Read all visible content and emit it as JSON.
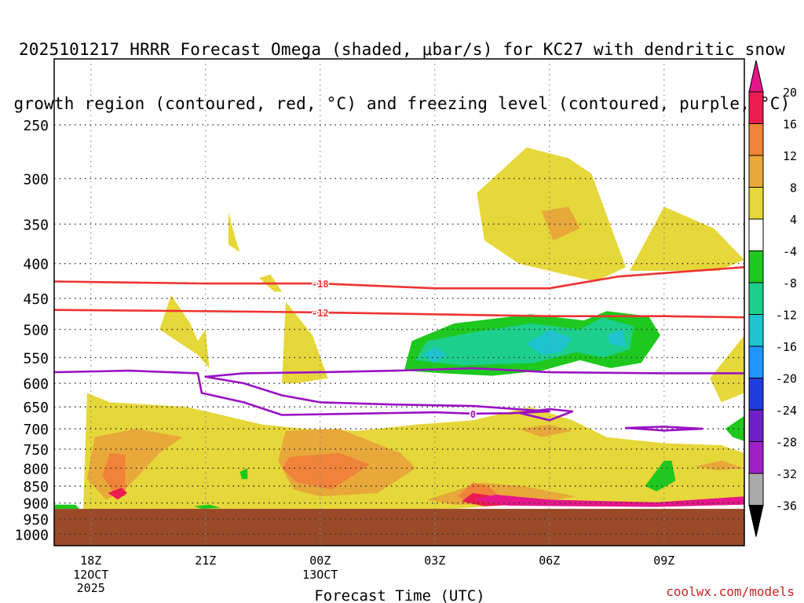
{
  "chart_data": {
    "type": "heatmap",
    "title_lines": [
      "2025101217 HRRR Forecast Omega (shaded, μbar/s) for KC27 with dendritic snow",
      "growth region (contoured, red, °C) and freezing level (contoured, purple, °C)"
    ],
    "xlabel": "Forecast Time (UTC)",
    "ylabel": "",
    "x_ticks": [
      {
        "label": "18Z",
        "sub": [
          "12OCT",
          "2025"
        ],
        "hours": 0
      },
      {
        "label": "21Z",
        "sub": [],
        "hours": 3
      },
      {
        "label": "00Z",
        "sub": [
          "13OCT"
        ],
        "hours": 6
      },
      {
        "label": "03Z",
        "sub": [],
        "hours": 9
      },
      {
        "label": "06Z",
        "sub": [],
        "hours": 12
      },
      {
        "label": "09Z",
        "sub": [],
        "hours": 15
      }
    ],
    "xlim_hours": [
      -0.96,
      17.1
    ],
    "y_ticks": [
      250,
      300,
      350,
      400,
      450,
      500,
      550,
      600,
      650,
      700,
      750,
      800,
      850,
      900,
      950,
      1000
    ],
    "y_scale": "log-pressure",
    "ylim": [
      200,
      1040
    ],
    "ground_pressure": 918,
    "grid": true,
    "colorbar": {
      "label_values": [
        20,
        16,
        12,
        8,
        4,
        -4,
        -8,
        -12,
        -16,
        -20,
        -24,
        -28,
        -32,
        -36
      ],
      "colors_top_to_bottom": [
        "#ec1c50",
        "#f0823a",
        "#e8a83a",
        "#e6d73a",
        "#ffffff",
        "#1ec81e",
        "#1dcf8c",
        "#1fc3cf",
        "#1e96ff",
        "#1e3cdc",
        "#7020c8",
        "#a020c8",
        "#aaaaaa"
      ],
      "arrow_top": "#e6168a",
      "arrow_bottom": "#000000"
    },
    "contours": [
      {
        "name": "-18",
        "color": "#ee3333",
        "label": "-18",
        "points": [
          [
            -0.96,
            425
          ],
          [
            3,
            428
          ],
          [
            6,
            428
          ],
          [
            9,
            435
          ],
          [
            12,
            435
          ],
          [
            13.8,
            418
          ],
          [
            17.1,
            405
          ]
        ]
      },
      {
        "name": "-12",
        "color": "#ee3333",
        "label": "-12",
        "points": [
          [
            -0.96,
            468
          ],
          [
            3,
            470
          ],
          [
            6,
            472
          ],
          [
            9,
            475
          ],
          [
            12,
            478
          ],
          [
            15,
            478
          ],
          [
            17.1,
            480
          ]
        ]
      },
      {
        "name": "0",
        "color": "#9b11c4",
        "label": "0",
        "points": [
          [
            -0.96,
            578
          ],
          [
            1,
            575
          ],
          [
            2.8,
            580
          ],
          [
            2.9,
            620
          ],
          [
            4,
            640
          ],
          [
            5,
            668
          ],
          [
            7,
            665
          ],
          [
            9,
            662
          ],
          [
            10,
            665
          ],
          [
            11,
            664
          ],
          [
            12,
            660
          ],
          [
            10,
            648
          ],
          [
            8,
            645
          ],
          [
            6,
            640
          ],
          [
            5,
            625
          ],
          [
            4,
            600
          ],
          [
            3,
            587
          ],
          [
            4,
            580
          ],
          [
            6,
            578
          ],
          [
            8,
            575
          ],
          [
            10,
            570
          ],
          [
            12,
            578
          ],
          [
            15,
            580
          ],
          [
            17.1,
            580
          ]
        ]
      },
      {
        "name": "0-small-1",
        "color": "#9b11c4",
        "label": "",
        "points": [
          [
            11.2,
            663
          ],
          [
            12,
            655
          ],
          [
            12.6,
            660
          ],
          [
            12,
            680
          ],
          [
            11.2,
            663
          ]
        ]
      },
      {
        "name": "0-small-2",
        "color": "#9b11c4",
        "label": "",
        "points": [
          [
            15,
            695
          ],
          [
            16,
            700
          ],
          [
            15,
            704
          ],
          [
            14,
            698
          ],
          [
            15,
            695
          ]
        ]
      }
    ],
    "shaded_regions": [
      {
        "name": "omega-pos-4-8-a",
        "color": "#e6d73a",
        "points": [
          [
            -0.2,
            920
          ],
          [
            -0.1,
            620
          ],
          [
            0.5,
            640
          ],
          [
            1.5,
            645
          ],
          [
            2.5,
            650
          ],
          [
            4.5,
            690
          ],
          [
            5.6,
            700
          ],
          [
            7,
            705
          ],
          [
            8.5,
            690
          ],
          [
            10,
            680
          ],
          [
            11.5,
            650
          ],
          [
            12.6,
            680
          ],
          [
            13.5,
            720
          ],
          [
            15,
            735
          ],
          [
            16.5,
            740
          ],
          [
            17.1,
            760
          ],
          [
            17.1,
            900
          ],
          [
            14.8,
            908
          ],
          [
            12.8,
            902
          ],
          [
            11.2,
            903
          ],
          [
            9.5,
            918
          ]
        ]
      },
      {
        "name": "omega-pos-upper-1",
        "color": "#e6d73a",
        "points": [
          [
            10.1,
            315
          ],
          [
            11.4,
            270
          ],
          [
            12.5,
            280
          ],
          [
            13.1,
            295
          ],
          [
            14,
            405
          ],
          [
            13.2,
            425
          ],
          [
            12,
            410
          ],
          [
            11.2,
            400
          ],
          [
            10.3,
            370
          ]
        ]
      },
      {
        "name": "omega-pos-upper-2",
        "color": "#e6d73a",
        "points": [
          [
            14.1,
            410
          ],
          [
            15,
            330
          ],
          [
            16.3,
            355
          ],
          [
            17.1,
            395
          ],
          [
            16.4,
            410
          ],
          [
            15.2,
            410
          ]
        ]
      },
      {
        "name": "omega-pos-upper-3",
        "color": "#e6d73a",
        "points": [
          [
            3.6,
            336
          ],
          [
            3.8,
            370
          ],
          [
            3.9,
            385
          ],
          [
            3.6,
            375
          ]
        ]
      },
      {
        "name": "omega-pos-mid-1",
        "color": "#e6d73a",
        "points": [
          [
            1.8,
            500
          ],
          [
            2.1,
            445
          ],
          [
            2.6,
            490
          ],
          [
            2.8,
            520
          ],
          [
            3,
            500
          ],
          [
            3.1,
            570
          ],
          [
            2.8,
            545
          ]
        ]
      },
      {
        "name": "omega-pos-mid-2",
        "color": "#e6d73a",
        "points": [
          [
            5,
            600
          ],
          [
            5.1,
            455
          ],
          [
            5.8,
            510
          ],
          [
            6.2,
            590
          ],
          [
            5.4,
            600
          ]
        ]
      },
      {
        "name": "omega-pos-mid-3",
        "color": "#e6d73a",
        "points": [
          [
            4.4,
            420
          ],
          [
            4.7,
            415
          ],
          [
            5.0,
            440
          ],
          [
            4.8,
            440
          ]
        ]
      },
      {
        "name": "omega-pos-right",
        "color": "#e6d73a",
        "points": [
          [
            16.2,
            590
          ],
          [
            17.1,
            510
          ],
          [
            17.1,
            620
          ],
          [
            16.5,
            640
          ]
        ]
      },
      {
        "name": "omega-pos-8-12-a",
        "color": "#e8a83a",
        "points": [
          [
            -0.1,
            830
          ],
          [
            0.1,
            720
          ],
          [
            1.2,
            700
          ],
          [
            2.4,
            720
          ],
          [
            1.8,
            760
          ],
          [
            0.9,
            860
          ],
          [
            0.4,
            890
          ]
        ]
      },
      {
        "name": "omega-pos-8-12-b",
        "color": "#e8a83a",
        "points": [
          [
            4.9,
            780
          ],
          [
            5.1,
            705
          ],
          [
            6.5,
            700
          ],
          [
            8.1,
            760
          ],
          [
            8.5,
            800
          ],
          [
            7.5,
            870
          ],
          [
            6.0,
            880
          ],
          [
            5.3,
            860
          ]
        ]
      },
      {
        "name": "omega-pos-8-12-c",
        "color": "#e8a83a",
        "points": [
          [
            8.8,
            890
          ],
          [
            10.2,
            840
          ],
          [
            11.3,
            850
          ],
          [
            12.7,
            880
          ],
          [
            11.6,
            900
          ],
          [
            9.5,
            905
          ]
        ]
      },
      {
        "name": "omega-pos-8-12-d",
        "color": "#e8a83a",
        "points": [
          [
            11.2,
            700
          ],
          [
            12,
            690
          ],
          [
            12.6,
            705
          ],
          [
            11.8,
            720
          ]
        ]
      },
      {
        "name": "omega-pos-8-12-e",
        "color": "#e8a83a",
        "points": [
          [
            15.8,
            795
          ],
          [
            16.5,
            780
          ],
          [
            17.1,
            800
          ],
          [
            16.4,
            805
          ]
        ]
      },
      {
        "name": "omega-pos-8-12-upper",
        "color": "#e8a83a",
        "points": [
          [
            11.8,
            335
          ],
          [
            12.5,
            330
          ],
          [
            12.8,
            355
          ],
          [
            12.1,
            370
          ]
        ]
      },
      {
        "name": "omega-pos-12-16-a",
        "color": "#f0823a",
        "points": [
          [
            0.3,
            820
          ],
          [
            0.5,
            760
          ],
          [
            0.9,
            765
          ],
          [
            0.9,
            880
          ],
          [
            0.6,
            870
          ]
        ]
      },
      {
        "name": "omega-pos-12-16-b",
        "color": "#f0823a",
        "points": [
          [
            5.0,
            800
          ],
          [
            5.2,
            770
          ],
          [
            6.5,
            760
          ],
          [
            7.3,
            790
          ],
          [
            6.3,
            860
          ],
          [
            5.4,
            840
          ]
        ]
      },
      {
        "name": "omega-pos-12-16-c",
        "color": "#f0823a",
        "points": [
          [
            9.6,
            880
          ],
          [
            10.0,
            840
          ],
          [
            10.4,
            850
          ],
          [
            10.9,
            900
          ],
          [
            10.0,
            905
          ]
        ]
      },
      {
        "name": "omega-pos-16-20-a",
        "color": "#ec1c50",
        "points": [
          [
            0.45,
            870
          ],
          [
            0.8,
            855
          ],
          [
            0.95,
            870
          ],
          [
            0.7,
            890
          ]
        ]
      },
      {
        "name": "omega-pos-16-20-b",
        "color": "#ec1c50",
        "points": [
          [
            9.7,
            895
          ],
          [
            10.0,
            870
          ],
          [
            10.6,
            880
          ],
          [
            11.3,
            905
          ],
          [
            10.3,
            910
          ]
        ]
      },
      {
        "name": "omega-pos-20-plus",
        "color": "#e6168a",
        "points": [
          [
            10.0,
            890
          ],
          [
            10.6,
            875
          ],
          [
            12.0,
            890
          ],
          [
            14.8,
            898
          ],
          [
            17.1,
            880
          ],
          [
            17.1,
            905
          ],
          [
            14.8,
            912
          ],
          [
            12.6,
            910
          ],
          [
            10.9,
            908
          ]
        ]
      },
      {
        "name": "omega-neg-4-8-big",
        "color": "#1ec81e",
        "points": [
          [
            8.2,
            575
          ],
          [
            8.4,
            520
          ],
          [
            9.5,
            490
          ],
          [
            11.5,
            475
          ],
          [
            12.9,
            485
          ],
          [
            13.5,
            470
          ],
          [
            14.6,
            478
          ],
          [
            14.9,
            510
          ],
          [
            14.4,
            560
          ],
          [
            13.6,
            570
          ],
          [
            12.8,
            555
          ],
          [
            11.8,
            575
          ],
          [
            10.5,
            585
          ],
          [
            9.2,
            580
          ]
        ]
      },
      {
        "name": "omega-neg-8-12",
        "color": "#1dcf8c",
        "points": [
          [
            8.5,
            555
          ],
          [
            8.8,
            520
          ],
          [
            10,
            505
          ],
          [
            11.5,
            490
          ],
          [
            12.8,
            500
          ],
          [
            13.4,
            480
          ],
          [
            14.2,
            495
          ],
          [
            14.1,
            535
          ],
          [
            13.4,
            550
          ],
          [
            12.7,
            540
          ],
          [
            11.6,
            560
          ],
          [
            9.7,
            565
          ]
        ]
      },
      {
        "name": "omega-neg-12-16-a",
        "color": "#1fc3cf",
        "points": [
          [
            8.7,
            545
          ],
          [
            9.0,
            530
          ],
          [
            9.3,
            545
          ],
          [
            9.0,
            560
          ]
        ]
      },
      {
        "name": "omega-neg-12-16-b",
        "color": "#1fc3cf",
        "points": [
          [
            11.4,
            525
          ],
          [
            12,
            500
          ],
          [
            12.6,
            515
          ],
          [
            12.3,
            540
          ],
          [
            11.8,
            545
          ]
        ]
      },
      {
        "name": "omega-neg-12-16-c",
        "color": "#1fc3cf",
        "points": [
          [
            13.5,
            510
          ],
          [
            13.9,
            500
          ],
          [
            14.0,
            530
          ],
          [
            13.6,
            525
          ]
        ]
      },
      {
        "name": "omega-neg-small-1",
        "color": "#1ec81e",
        "points": [
          [
            14.5,
            850
          ],
          [
            15.0,
            780
          ],
          [
            15.2,
            780
          ],
          [
            15.3,
            835
          ],
          [
            14.8,
            865
          ]
        ]
      },
      {
        "name": "omega-neg-small-2",
        "color": "#1ec81e",
        "points": [
          [
            3.9,
            810
          ],
          [
            4.1,
            800
          ],
          [
            4.1,
            830
          ],
          [
            3.95,
            830
          ]
        ]
      },
      {
        "name": "omega-neg-small-3",
        "color": "#1ec81e",
        "points": [
          [
            16.6,
            700
          ],
          [
            17.1,
            670
          ],
          [
            17.1,
            730
          ],
          [
            16.8,
            720
          ]
        ]
      },
      {
        "name": "omega-neg-small-4",
        "color": "#1ec81e",
        "points": [
          [
            -0.96,
            905
          ],
          [
            -0.4,
            905
          ],
          [
            -0.3,
            918
          ],
          [
            -0.96,
            918
          ]
        ]
      },
      {
        "name": "omega-neg-small-5",
        "color": "#1ec81e",
        "points": [
          [
            2.7,
            910
          ],
          [
            3.1,
            905
          ],
          [
            3.4,
            915
          ],
          [
            2.9,
            918
          ]
        ]
      }
    ]
  },
  "watermark": "coolwx.com/models"
}
